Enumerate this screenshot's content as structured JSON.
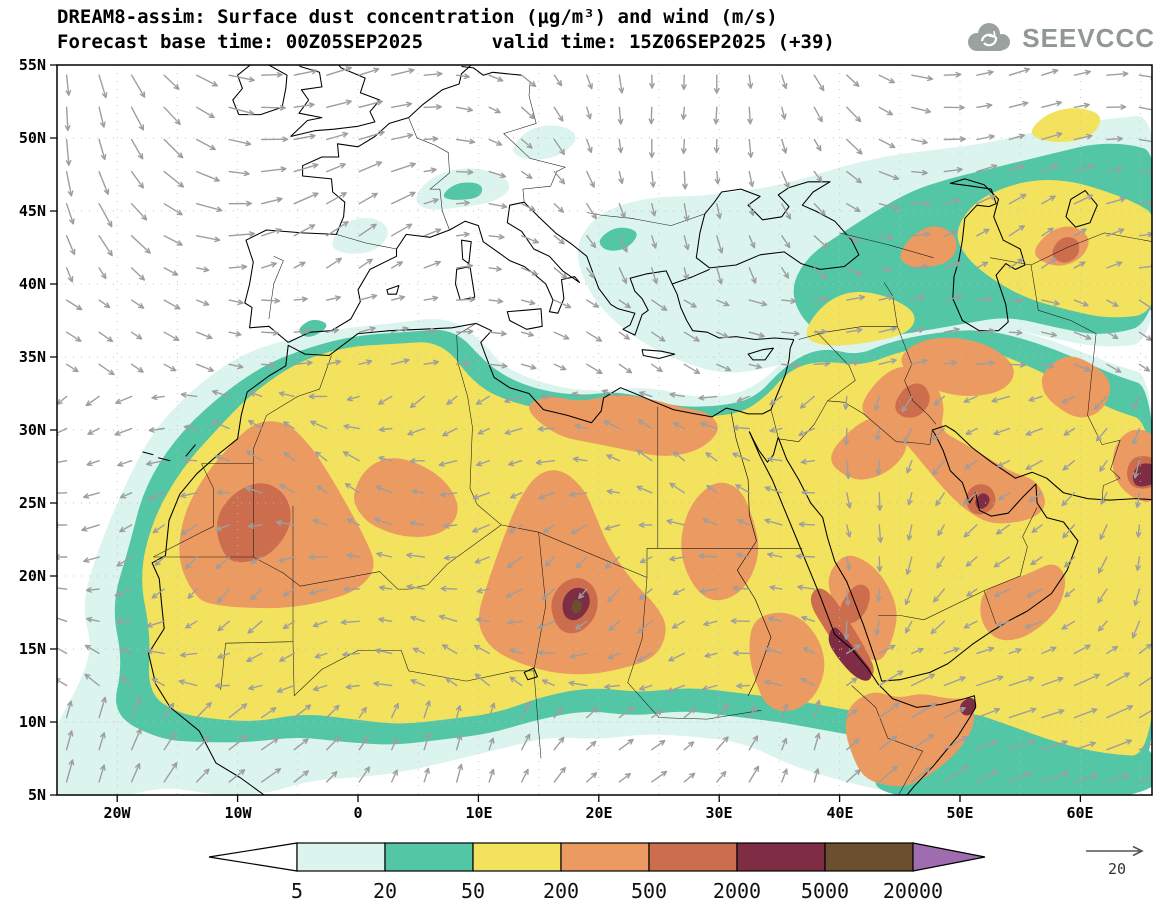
{
  "header": {
    "title_line1": "DREAM8-assim: Surface dust concentration (μg/m³) and wind (m/s)",
    "title_line2": "Forecast base time: 00Z05SEP2025      valid time: 15Z06SEP2025 (+39)",
    "logo_text": "SEEVCCC"
  },
  "map": {
    "lat_labels": [
      "55N",
      "50N",
      "45N",
      "40N",
      "35N",
      "30N",
      "25N",
      "20N",
      "15N",
      "10N",
      "5N"
    ],
    "lon_labels": [
      "20W",
      "10W",
      "0",
      "10E",
      "20E",
      "30E",
      "40E",
      "50E",
      "60E"
    ]
  },
  "colorbar": {
    "labels": [
      "5",
      "20",
      "50",
      "200",
      "500",
      "2000",
      "5000",
      "20000"
    ],
    "colors": {
      "below": "#ffffff",
      "c1": "#dcf4ee",
      "c2": "#53c6a5",
      "c3": "#f2e25e",
      "c4": "#eb9a61",
      "c5": "#cc6e4d",
      "c6": "#7e2d45",
      "c7": "#6b5030",
      "above": "#a06cb0"
    }
  },
  "wind": {
    "reference_label": "20"
  },
  "chart_data": {
    "type": "heatmap",
    "title": "DREAM8-assim: Surface dust concentration (μg/m³) and wind (m/s)",
    "model": "DREAM8-assim",
    "variable": "Surface dust concentration",
    "units": "μg/m³",
    "wind_units": "m/s",
    "forecast_base_time": "00Z05SEP2025",
    "valid_time": "15Z06SEP2025",
    "forecast_hour": "+39",
    "lon_range_deg": [
      -25,
      66
    ],
    "lat_range_deg": [
      5,
      55
    ],
    "lat_ticks": [
      "55N",
      "50N",
      "45N",
      "40N",
      "35N",
      "30N",
      "25N",
      "20N",
      "15N",
      "10N",
      "5N"
    ],
    "lon_ticks": [
      "20W",
      "10W",
      "0",
      "10E",
      "20E",
      "30E",
      "40E",
      "50E",
      "60E"
    ],
    "contour_levels": [
      5,
      20,
      50,
      200,
      500,
      2000,
      5000,
      20000
    ],
    "level_colors": [
      "#ffffff",
      "#dcf4ee",
      "#53c6a5",
      "#f2e25e",
      "#eb9a61",
      "#cc6e4d",
      "#7e2d45",
      "#6b5030",
      "#a06cb0"
    ],
    "wind_reference_ms": 20,
    "legend_position": "bottom",
    "grid": "dotted 5-degree graticule",
    "notable_features": [
      "50-200 ug/m3 (yellow) covers most of the Sahara, the Arabian Peninsula, Iraq, Iran and the Arabian Sea",
      "200-500 ug/m3 (orange) plumes over western Sahara/Mauritania/Mali, central Algeria, coastal Libya-Egypt, Chad-Niger-Sudan, Horn of Africa, Iraq-Persian Gulf, northern and eastern Iran and the Makran coast",
      "500-2000 ug/m3 cores inside those plumes; >2000 ug/m3 (maroon) spots over central Chad, the southern Red Sea coast, the Persian Gulf, northern Somalia and the far right map edge",
      "20-50 ug/m3 (teal) fringe along the Sahel, the northwest African and Mediterranean coasts, the Caucasus-Caspian region and a band across the Arabian Sea",
      "Below 5 ug/m3 (white) over most of Europe and the central Mediterranean",
      "Gray wind vectors overlaid everywhere; reference vector 20 m/s at lower right"
    ]
  }
}
